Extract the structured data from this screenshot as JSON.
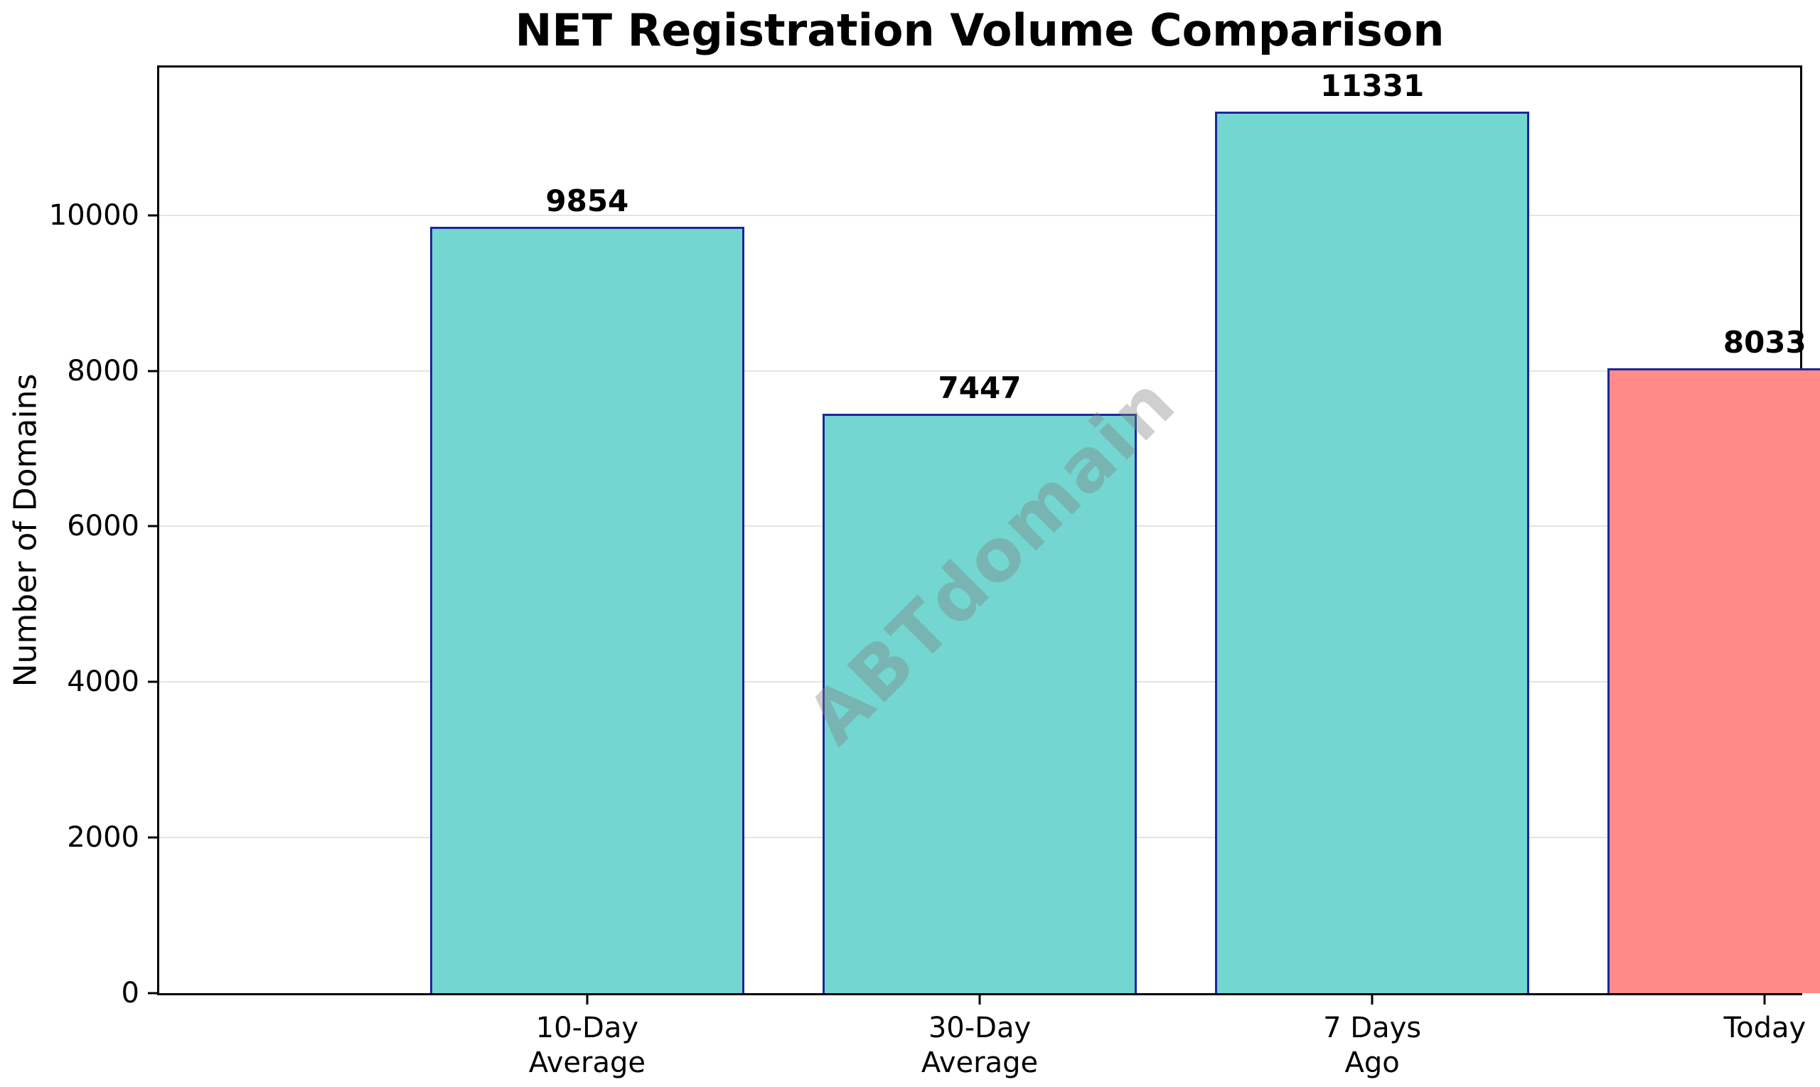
{
  "title": "NET Registration Volume Comparison",
  "watermark": "ABTdomain",
  "chart_data": {
    "type": "bar",
    "title": "NET Registration Volume Comparison",
    "xlabel": "",
    "ylabel": "Number of Domains",
    "categories": [
      "10-Day\nAverage",
      "30-Day\nAverage",
      "7 Days\nAgo",
      "Today"
    ],
    "values": [
      9854,
      7447,
      11331,
      8033
    ],
    "value_labels": [
      "9854",
      "7447",
      "11331",
      "8033"
    ],
    "bar_colors": [
      "#73d6d1",
      "#73d6d1",
      "#73d6d1",
      "#ff8a88"
    ],
    "bar_edge_color": "#1c2699",
    "ylim": [
      0,
      11898
    ],
    "yticks": [
      0,
      2000,
      4000,
      6000,
      8000,
      10000
    ],
    "grid": true,
    "gridline_color": "#e4e4e4",
    "legend": "none",
    "watermark_text": "ABTdomain",
    "watermark_color": "#808080"
  }
}
